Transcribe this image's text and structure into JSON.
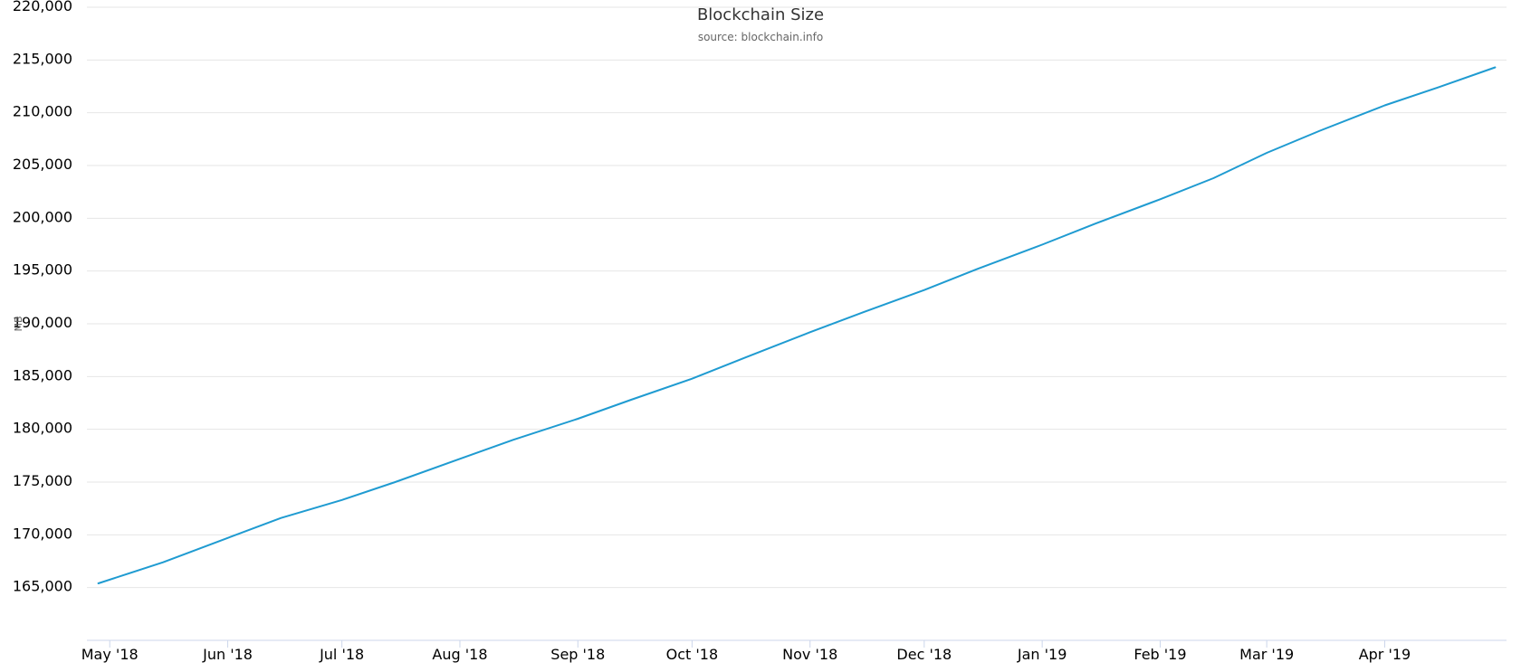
{
  "chart_data": {
    "type": "line",
    "title": "Blockchain Size",
    "subtitle": "source: blockchain.info",
    "ylabel": "MB",
    "xlabel": "",
    "ylim": [
      160000,
      220000
    ],
    "y_ticks": [
      165000,
      170000,
      175000,
      180000,
      185000,
      190000,
      195000,
      200000,
      205000,
      210000,
      215000,
      220000
    ],
    "y_tick_labels": [
      "165,000",
      "170,000",
      "175,000",
      "180,000",
      "185,000",
      "190,000",
      "195,000",
      "200,000",
      "205,000",
      "210,000",
      "215,000",
      "220,000"
    ],
    "x_ticks": [
      "2018-05-01",
      "2018-06-01",
      "2018-07-01",
      "2018-08-01",
      "2018-09-01",
      "2018-10-01",
      "2018-11-01",
      "2018-12-01",
      "2019-01-01",
      "2019-02-01",
      "2019-03-01",
      "2019-04-01"
    ],
    "x_tick_labels": [
      "May '18",
      "Jun '18",
      "Jul '18",
      "Aug '18",
      "Sep '18",
      "Oct '18",
      "Nov '18",
      "Dec '18",
      "Jan '19",
      "Feb '19",
      "Mar '19",
      "Apr '19"
    ],
    "xlim": [
      "2018-04-25",
      "2019-05-03"
    ],
    "grid": true,
    "legend": "none",
    "colors": {
      "line": "#1f9bd1",
      "grid": "#e6e6e6",
      "axis": "#ccd6eb"
    },
    "series": [
      {
        "x": [
          "2018-04-28",
          "2018-05-15",
          "2018-06-01",
          "2018-06-15",
          "2018-07-01",
          "2018-07-15",
          "2018-08-01",
          "2018-08-15",
          "2018-09-01",
          "2018-09-15",
          "2018-10-01",
          "2018-10-15",
          "2018-11-01",
          "2018-11-15",
          "2018-12-01",
          "2018-12-15",
          "2019-01-01",
          "2019-01-15",
          "2019-02-01",
          "2019-02-15",
          "2019-03-01",
          "2019-03-15",
          "2019-04-01",
          "2019-04-15",
          "2019-04-30"
        ],
        "values": [
          165400,
          167400,
          169700,
          171600,
          173300,
          175000,
          177200,
          179000,
          181000,
          182800,
          184800,
          186800,
          189200,
          191100,
          193200,
          195200,
          197500,
          199500,
          201800,
          203800,
          206200,
          208300,
          210700,
          212400,
          214300
        ]
      }
    ]
  }
}
